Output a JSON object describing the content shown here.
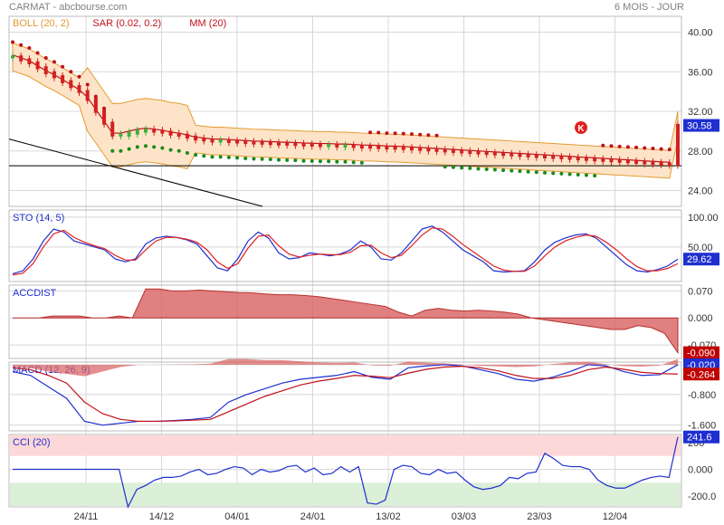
{
  "header": {
    "title": "CARMAT - abcbourse.com",
    "period": "6 MOIS - JOUR"
  },
  "colors": {
    "boll": "#e39a2e",
    "sar": "#c0101a",
    "mm": "#c0101a",
    "sar_up": "#1a8a1a",
    "blue": "#1f2fd0",
    "area": "#c0393b",
    "grid": "#d8d8d8"
  },
  "x_axis": {
    "ticks": [
      "24/11",
      "14/12",
      "04/01",
      "24/01",
      "13/02",
      "03/03",
      "23/03",
      "12/04"
    ]
  },
  "chart_data": [
    {
      "type": "line",
      "panel": "price",
      "title": "",
      "legend": [
        {
          "name": "BOLL (20, 2)",
          "color": "#e39a2e"
        },
        {
          "name": "SAR (0.02, 0.2)",
          "color": "#c0101a"
        },
        {
          "name": "MM (20)",
          "color": "#c0101a"
        }
      ],
      "ylim": [
        22.4,
        41.6
      ],
      "yticks": [
        "40.00",
        "36.00",
        "32.00",
        "28.00",
        "24.00"
      ],
      "last_price": "30.58",
      "marker": "K",
      "close": [
        37.5,
        37.2,
        36.9,
        36.4,
        35.9,
        35.5,
        35.0,
        34.5,
        34.0,
        33.2,
        32.0,
        30.8,
        29.6,
        29.6,
        29.8,
        30.0,
        30.1,
        30.0,
        29.9,
        29.7,
        29.6,
        29.4,
        29.2,
        29.1,
        29.0,
        29.0,
        28.95,
        28.9,
        28.85,
        28.8,
        28.78,
        28.75,
        28.7,
        28.68,
        28.65,
        28.6,
        28.58,
        28.55,
        28.55,
        28.5,
        28.5,
        28.45,
        28.4,
        28.38,
        28.35,
        28.3,
        28.28,
        28.25,
        28.2,
        28.15,
        28.1,
        28.05,
        28.0,
        27.95,
        27.9,
        27.85,
        27.8,
        27.75,
        27.7,
        27.65,
        27.6,
        27.55,
        27.5,
        27.45,
        27.4,
        27.35,
        27.3,
        27.25,
        27.2,
        27.15,
        27.1,
        27.05,
        27.0,
        26.95,
        26.9,
        26.85,
        26.8,
        26.75,
        26.7,
        26.65,
        30.58
      ]
    },
    {
      "type": "line",
      "panel": "STO",
      "title": "STO (14, 5)",
      "ylim": [
        -8,
        112
      ],
      "yticks": [
        "100.00",
        "50.00"
      ],
      "last_value": "29.62",
      "series": [
        {
          "name": "%K",
          "values": [
            5,
            10,
            30,
            60,
            80,
            75,
            60,
            55,
            50,
            45,
            30,
            25,
            30,
            55,
            65,
            68,
            66,
            62,
            55,
            35,
            15,
            10,
            30,
            60,
            75,
            65,
            40,
            30,
            32,
            40,
            38,
            35,
            38,
            45,
            60,
            50,
            30,
            28,
            40,
            60,
            80,
            85,
            75,
            60,
            45,
            35,
            25,
            10,
            8,
            9,
            10,
            25,
            45,
            58,
            65,
            70,
            72,
            65,
            50,
            35,
            20,
            10,
            8,
            12,
            18,
            29.62
          ]
        },
        {
          "name": "%D",
          "values": [
            3,
            6,
            22,
            50,
            72,
            78,
            66,
            58,
            52,
            47,
            36,
            28,
            28,
            45,
            60,
            66,
            66,
            63,
            58,
            45,
            25,
            14,
            22,
            48,
            68,
            70,
            52,
            38,
            33,
            36,
            38,
            37,
            37,
            41,
            52,
            53,
            40,
            32,
            36,
            52,
            70,
            82,
            80,
            68,
            54,
            42,
            30,
            18,
            11,
            9,
            9,
            18,
            35,
            50,
            60,
            66,
            70,
            68,
            58,
            45,
            30,
            17,
            10,
            10,
            14,
            22
          ]
        }
      ]
    },
    {
      "type": "area",
      "panel": "ACCDIST",
      "title": "ACCDIST",
      "ylim": [
        -0.105,
        0.085
      ],
      "yticks": [
        "0.070",
        "0.000",
        "-0.070"
      ],
      "last_value": "-0.090",
      "values": [
        0.0,
        0.0,
        0.0,
        0.005,
        0.005,
        0.005,
        0.0,
        0.0,
        0.005,
        0.0,
        0.075,
        0.075,
        0.07,
        0.07,
        0.072,
        0.07,
        0.068,
        0.066,
        0.065,
        0.062,
        0.06,
        0.06,
        0.058,
        0.055,
        0.05,
        0.045,
        0.04,
        0.035,
        0.03,
        0.015,
        0.005,
        0.02,
        0.025,
        0.02,
        0.018,
        0.02,
        0.018,
        0.015,
        0.01,
        0.0,
        -0.005,
        -0.01,
        -0.015,
        -0.02,
        -0.025,
        -0.03,
        -0.03,
        -0.02,
        -0.025,
        -0.04,
        -0.09
      ]
    },
    {
      "type": "line",
      "panel": "MACD",
      "title": "MACD (12, 26, 9)",
      "ylim": [
        -1.75,
        0.05
      ],
      "yticks": [
        "-0.020",
        "-0.800",
        "-1.600"
      ],
      "last_value": "-0.020",
      "last_signal": "-0.264",
      "series": [
        {
          "name": "MACD",
          "values": [
            -0.2,
            -0.3,
            -0.6,
            -0.9,
            -1.5,
            -1.6,
            -1.55,
            -1.5,
            -1.5,
            -1.48,
            -1.45,
            -1.4,
            -1.0,
            -0.8,
            -0.65,
            -0.5,
            -0.4,
            -0.35,
            -0.3,
            -0.2,
            -0.35,
            -0.4,
            -0.1,
            -0.05,
            -0.02,
            -0.05,
            -0.15,
            -0.25,
            -0.4,
            -0.45,
            -0.35,
            -0.2,
            -0.02,
            -0.05,
            -0.2,
            -0.3,
            -0.28,
            -0.02
          ]
        },
        {
          "name": "Signal",
          "values": [
            -0.1,
            -0.15,
            -0.3,
            -0.5,
            -1.0,
            -1.3,
            -1.45,
            -1.5,
            -1.5,
            -1.49,
            -1.47,
            -1.45,
            -1.25,
            -1.05,
            -0.85,
            -0.7,
            -0.55,
            -0.45,
            -0.38,
            -0.3,
            -0.32,
            -0.36,
            -0.24,
            -0.14,
            -0.08,
            -0.06,
            -0.1,
            -0.18,
            -0.3,
            -0.38,
            -0.38,
            -0.3,
            -0.15,
            -0.08,
            -0.14,
            -0.22,
            -0.25,
            -0.264
          ]
        }
      ]
    },
    {
      "type": "line",
      "panel": "CCI",
      "title": "CCI (20)",
      "ylim": [
        -280,
        260
      ],
      "yticks": [
        "200",
        "0.000",
        "-200.0"
      ],
      "last_value": "241.6",
      "values": [
        0,
        0,
        0,
        0,
        0,
        0,
        0,
        0,
        0,
        0,
        0,
        0,
        0,
        -280,
        -150,
        -120,
        -80,
        -60,
        -60,
        -50,
        -20,
        0,
        -40,
        -30,
        0,
        20,
        10,
        -40,
        0,
        -20,
        -10,
        20,
        30,
        -20,
        10,
        -40,
        -30,
        20,
        -20,
        20,
        -250,
        -260,
        -230,
        0,
        30,
        20,
        -30,
        -40,
        0,
        -30,
        -20,
        -80,
        -130,
        -150,
        -140,
        -120,
        -60,
        -70,
        -30,
        -20,
        120,
        80,
        30,
        20,
        20,
        0,
        -80,
        -120,
        -140,
        -140,
        -110,
        -80,
        -60,
        -50,
        -60,
        241.6
      ]
    }
  ]
}
